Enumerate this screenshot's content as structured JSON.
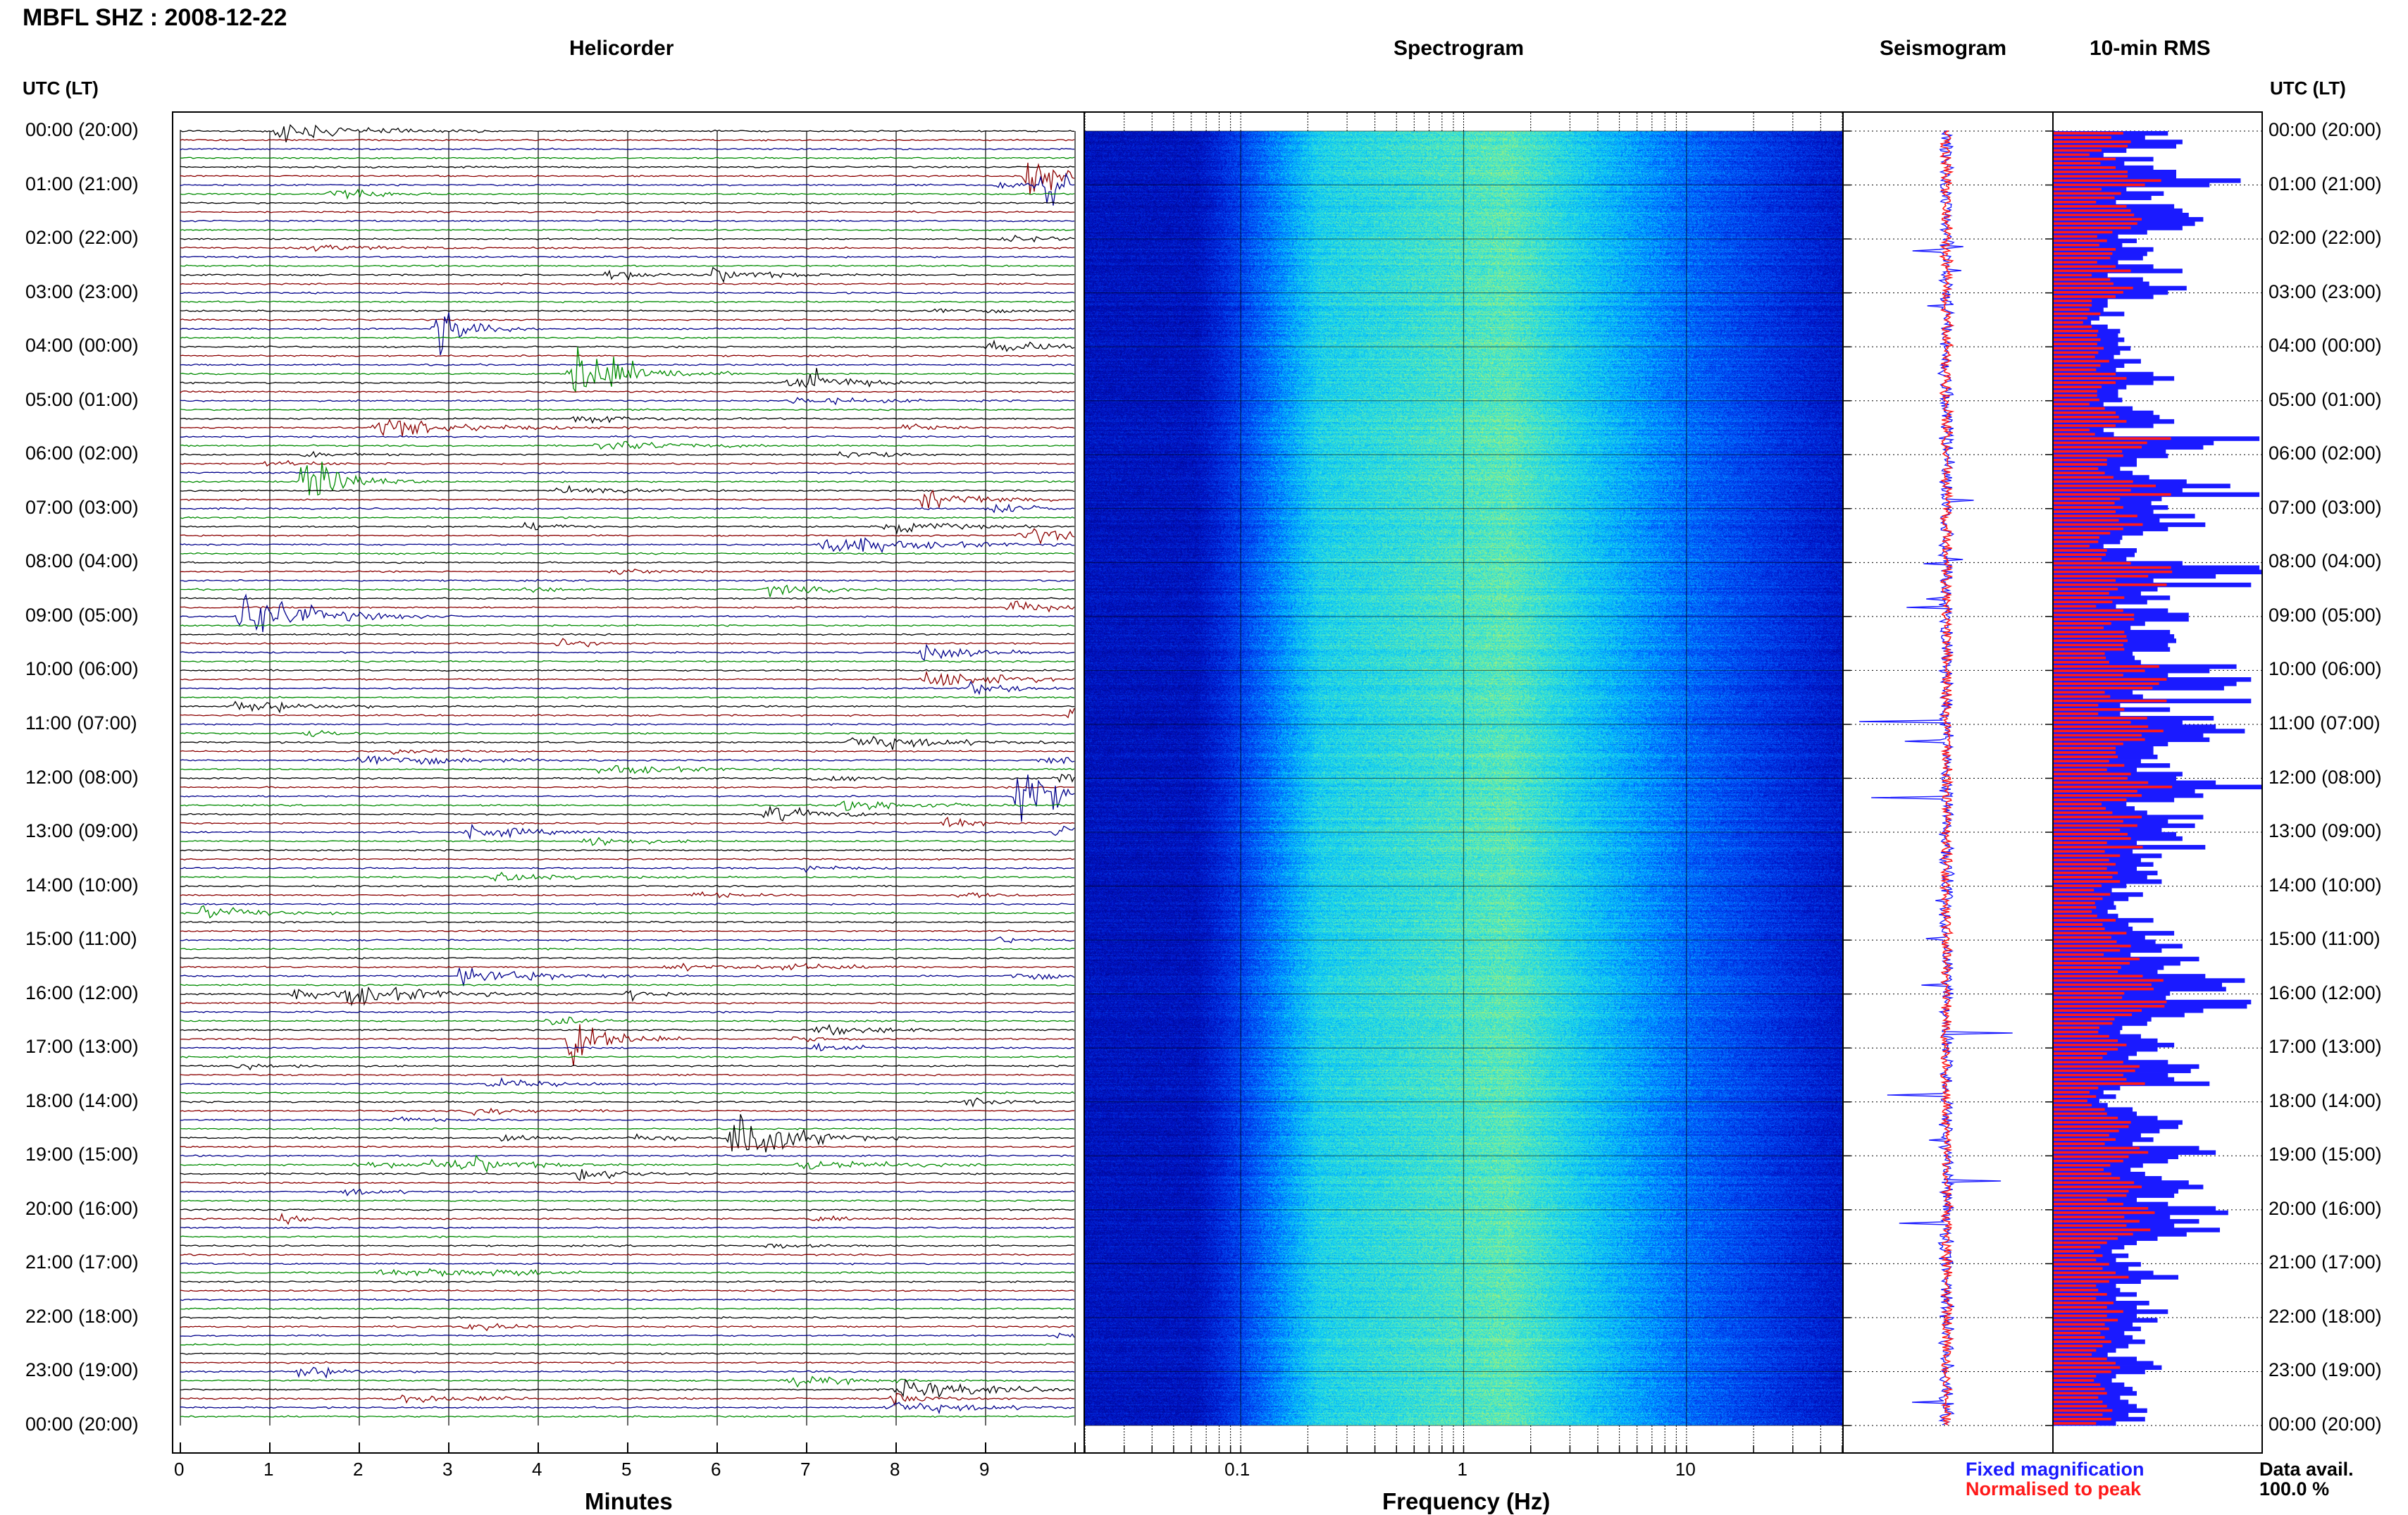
{
  "header": {
    "title": "MBFL SHZ : 2008-12-22"
  },
  "panels": {
    "helicorder": "Helicorder",
    "spectrogram": "Spectrogram",
    "seismogram": "Seismogram",
    "rms": "10-min RMS"
  },
  "axis": {
    "left_label": "UTC (LT)",
    "right_label": "UTC (LT)",
    "minutes_label": "Minutes",
    "frequency_label": "Frequency (Hz)",
    "minute_ticks": [
      "0",
      "1",
      "2",
      "3",
      "4",
      "5",
      "6",
      "7",
      "8",
      "9"
    ],
    "frequency_ticks": [
      "0.1",
      "1",
      "10"
    ]
  },
  "hour_labels": [
    "00:00 (20:00)",
    "01:00 (21:00)",
    "02:00 (22:00)",
    "03:00 (23:00)",
    "04:00 (00:00)",
    "05:00 (01:00)",
    "06:00 (02:00)",
    "07:00 (03:00)",
    "08:00 (04:00)",
    "09:00 (05:00)",
    "10:00 (06:00)",
    "11:00 (07:00)",
    "12:00 (08:00)",
    "13:00 (09:00)",
    "14:00 (10:00)",
    "15:00 (11:00)",
    "16:00 (12:00)",
    "17:00 (13:00)",
    "18:00 (14:00)",
    "19:00 (15:00)",
    "20:00 (16:00)",
    "21:00 (17:00)",
    "22:00 (18:00)",
    "23:00 (19:00)",
    "00:00 (20:00)"
  ],
  "legend": {
    "fixed": "Fixed magnification",
    "normalised": "Normalised to peak",
    "fixed_color": "#1a1aff",
    "normalised_color": "#ff1a1a"
  },
  "data_avail": {
    "label": "Data avail.",
    "value": "100.0 %"
  },
  "colors": {
    "trace_black": "#000000",
    "trace_red": "#8b0000",
    "trace_blue": "#00008b",
    "trace_green": "#008b00",
    "rms_blue": "#1a1aff",
    "rms_red": "#ff1a1a"
  },
  "chart_data": {
    "type": "heatmap",
    "x_minutes_range": [
      0,
      10
    ],
    "frequency_range_hz": [
      0.02,
      50
    ],
    "frequency_scale": "log",
    "time_range_utc": [
      "2008-12-22 00:00",
      "2008-12-23 00:00"
    ],
    "rms_fixed": [
      0.55,
      0.44,
      0.62,
      0.59,
      0.35,
      0.24,
      0.48,
      0.34,
      0.48,
      0.59,
      0.59,
      0.9,
      0.75,
      0.35,
      0.53,
      0.47,
      0.3,
      0.58,
      0.62,
      0.65,
      0.72,
      0.68,
      0.62,
      0.45,
      0.31,
      0.4,
      0.33,
      0.48,
      0.45,
      0.43,
      0.31,
      0.48,
      0.62,
      0.26,
      0.43,
      0.46,
      0.64,
      0.55,
      0.48,
      0.26,
      0.26,
      0.24,
      0.34,
      0.22,
      0.18,
      0.26,
      0.32,
      0.31,
      0.34,
      0.31,
      0.37,
      0.32,
      0.29,
      0.42,
      0.34,
      0.3,
      0.48,
      0.58,
      0.48,
      0.35,
      0.31,
      0.31,
      0.33,
      0.24,
      0.38,
      0.48,
      0.51,
      0.58,
      0.48,
      0.24,
      0.29,
      0.99,
      0.77,
      0.72,
      0.54,
      0.55,
      0.4,
      0.4,
      0.32,
      0.38,
      0.46,
      0.64,
      0.85,
      0.62,
      0.99,
      0.52,
      0.47,
      0.55,
      0.48,
      0.68,
      0.51,
      0.73,
      0.55,
      0.43,
      0.33,
      0.32,
      0.24,
      0.4,
      0.39,
      0.35,
      0.62,
      0.99,
      1.0,
      0.78,
      0.48,
      0.95,
      0.5,
      0.42,
      0.56,
      0.45,
      0.3,
      0.55,
      0.65,
      0.65,
      0.44,
      0.37,
      0.56,
      0.58,
      0.59,
      0.55,
      0.56,
      0.38,
      0.39,
      0.42,
      0.88,
      0.75,
      0.55,
      0.95,
      0.88,
      0.82,
      0.38,
      0.43,
      0.95,
      0.32,
      0.56,
      0.32,
      0.77,
      0.62,
      0.78,
      0.92,
      0.72,
      0.75,
      0.55,
      0.48,
      0.48,
      0.5,
      0.42,
      0.56,
      0.4,
      0.62,
      0.59,
      0.78,
      1.0,
      0.68,
      0.72,
      0.58,
      0.35,
      0.39,
      0.45,
      0.72,
      0.55,
      0.68,
      0.52,
      0.59,
      0.62,
      0.4,
      0.73,
      0.38,
      0.52,
      0.42,
      0.48,
      0.4,
      0.5,
      0.45,
      0.52,
      0.35,
      0.28,
      0.43,
      0.36,
      0.29,
      0.3,
      0.26,
      0.31,
      0.48,
      0.36,
      0.38,
      0.58,
      0.44,
      0.49,
      0.62,
      0.52,
      0.37,
      0.7,
      0.61,
      0.53,
      0.5,
      0.73,
      0.92,
      0.81,
      0.83,
      0.56,
      0.54,
      0.95,
      0.93,
      0.72,
      0.63,
      0.47,
      0.45,
      0.33,
      0.32,
      0.42,
      0.5,
      0.58,
      0.5,
      0.4,
      0.36,
      0.55,
      0.7,
      0.66,
      0.55,
      0.58,
      0.75,
      0.32,
      0.24,
      0.3,
      0.22,
      0.26,
      0.38,
      0.4,
      0.5,
      0.62,
      0.6,
      0.51,
      0.42,
      0.48,
      0.38,
      0.7,
      0.78,
      0.6,
      0.55,
      0.43,
      0.37,
      0.44,
      0.52,
      0.65,
      0.72,
      0.6,
      0.58,
      0.4,
      0.55,
      0.78,
      0.84,
      0.56,
      0.7,
      0.58,
      0.8,
      0.64,
      0.5,
      0.4,
      0.34,
      0.28,
      0.36,
      0.3,
      0.42,
      0.36,
      0.48,
      0.6,
      0.42,
      0.3,
      0.32,
      0.4,
      0.3,
      0.46,
      0.4,
      0.55,
      0.4,
      0.5,
      0.38,
      0.42,
      0.34,
      0.38,
      0.44,
      0.36,
      0.3,
      0.26,
      0.4,
      0.48,
      0.52,
      0.44,
      0.3,
      0.28,
      0.34,
      0.38,
      0.4,
      0.32,
      0.36,
      0.4,
      0.45,
      0.36,
      0.44,
      0.3
    ]
  }
}
